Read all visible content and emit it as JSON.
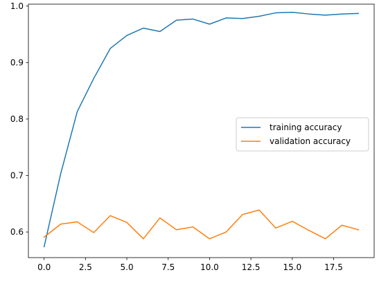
{
  "chart_data": {
    "type": "line",
    "title": "",
    "xlabel": "",
    "ylabel": "",
    "x": [
      0,
      1,
      2,
      3,
      4,
      5,
      6,
      7,
      8,
      9,
      10,
      11,
      12,
      13,
      14,
      15,
      16,
      17,
      18,
      19
    ],
    "xlim": [
      -0.95,
      19.95
    ],
    "ylim": [
      0.5547,
      1.0034
    ],
    "xticks": [
      0.0,
      2.5,
      5.0,
      7.5,
      10.0,
      12.5,
      15.0,
      17.5
    ],
    "xtick_labels": [
      "0.0",
      "2.5",
      "5.0",
      "7.5",
      "10.0",
      "12.5",
      "15.0",
      "17.5"
    ],
    "yticks": [
      0.6,
      0.7,
      0.8,
      0.9,
      1.0
    ],
    "ytick_labels": [
      "0.6",
      "0.7",
      "0.8",
      "0.9",
      "1.0"
    ],
    "grid": false,
    "legend_placement": "center-right",
    "series": [
      {
        "name": "training accuracy",
        "color": "#1f77b4",
        "values": [
          0.574,
          0.703,
          0.813,
          0.872,
          0.925,
          0.948,
          0.961,
          0.955,
          0.975,
          0.977,
          0.968,
          0.979,
          0.978,
          0.982,
          0.988,
          0.989,
          0.986,
          0.984,
          0.986,
          0.987
        ]
      },
      {
        "name": "validation accuracy",
        "color": "#ff7f0e",
        "values": [
          0.591,
          0.614,
          0.618,
          0.599,
          0.629,
          0.617,
          0.588,
          0.625,
          0.604,
          0.609,
          0.588,
          0.6,
          0.631,
          0.639,
          0.607,
          0.619,
          0.603,
          0.588,
          0.612,
          0.604
        ]
      }
    ]
  }
}
